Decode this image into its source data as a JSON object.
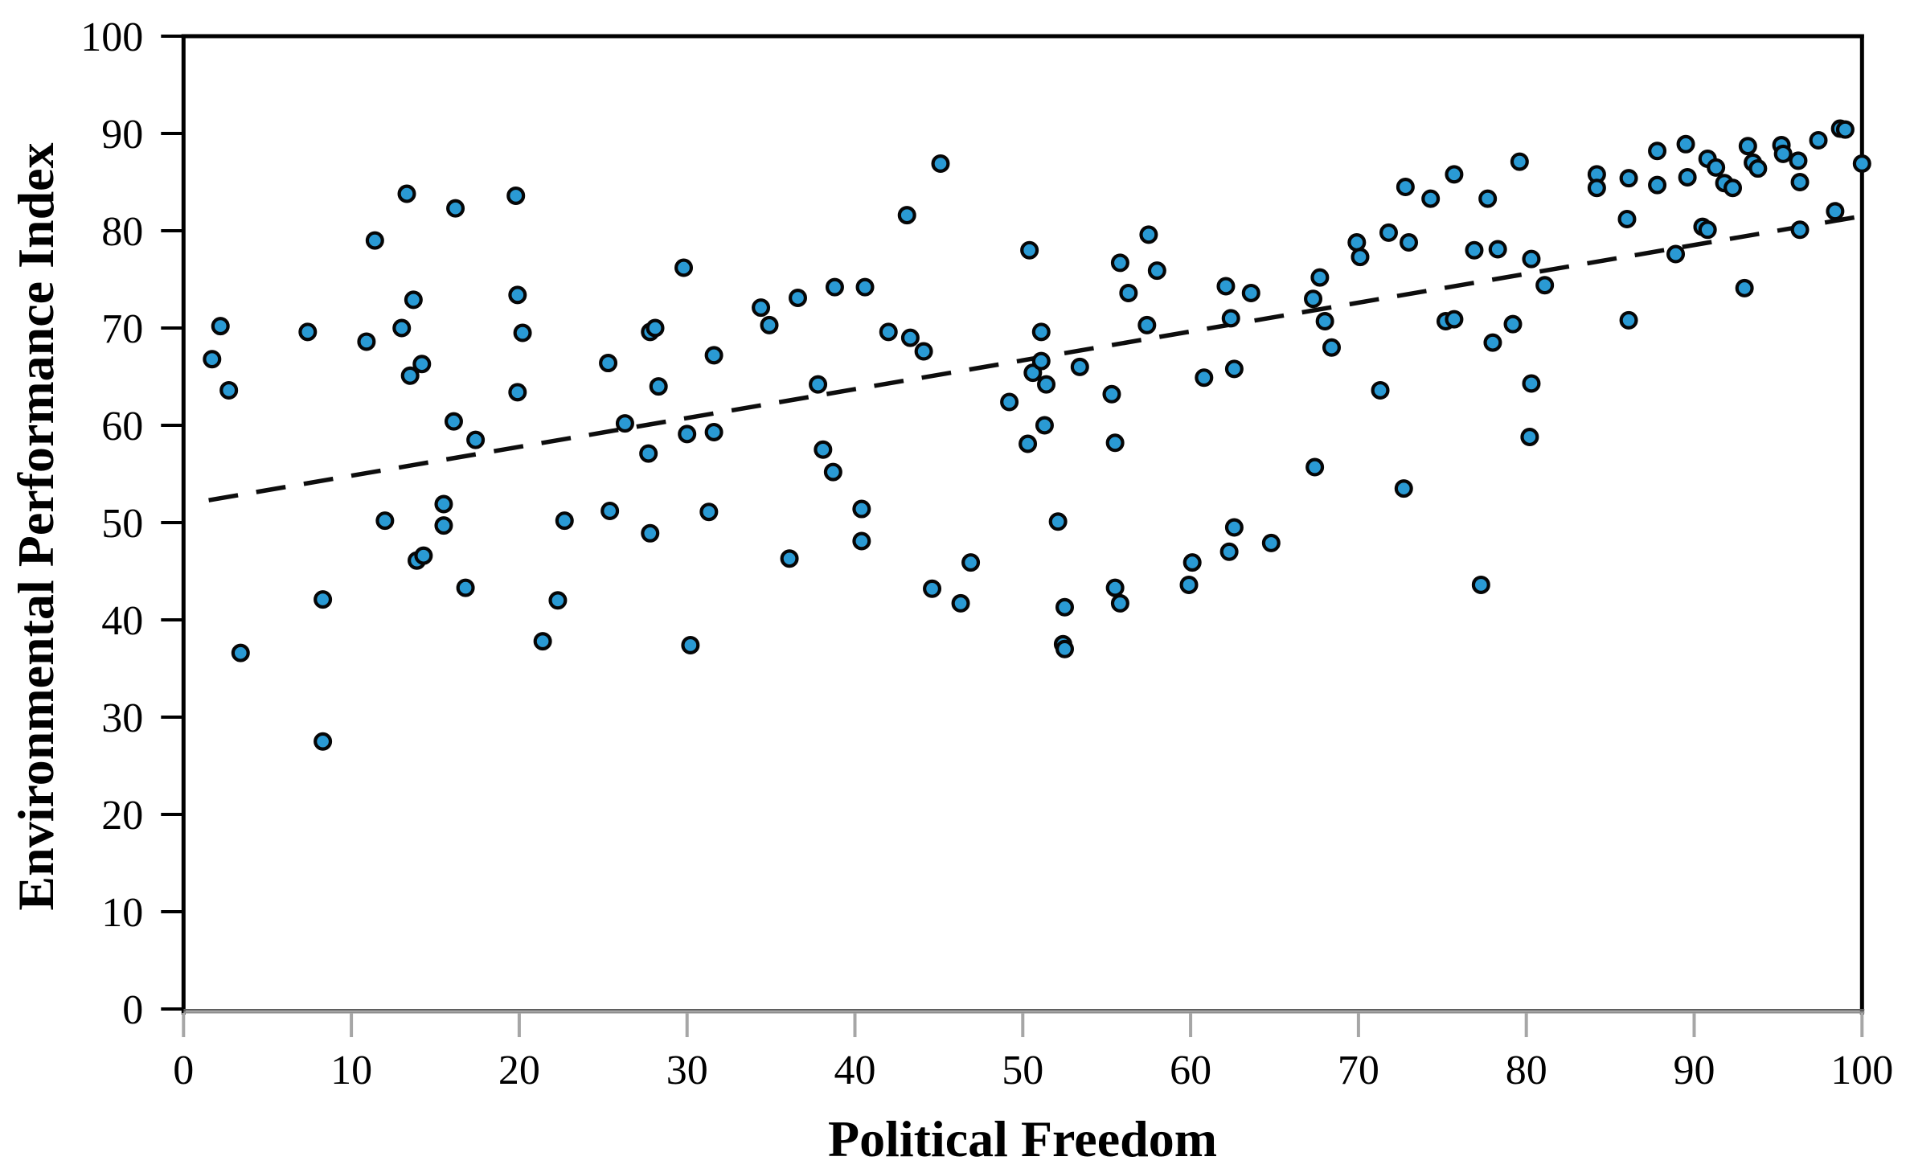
{
  "chart_data": {
    "type": "scatter",
    "title": "",
    "xlabel": "Political Freedom",
    "ylabel": "Environmental Performance Index",
    "xlim": [
      0,
      100
    ],
    "ylim": [
      0,
      100
    ],
    "xticks": [
      0,
      10,
      20,
      30,
      40,
      50,
      60,
      70,
      80,
      90,
      100
    ],
    "yticks": [
      0,
      10,
      20,
      30,
      40,
      50,
      60,
      70,
      80,
      90,
      100
    ],
    "grid": false,
    "legend": null,
    "marker": {
      "fill": "#2A9AD4",
      "stroke": "#060606"
    },
    "trendline": {
      "style": "dashed",
      "color": "#0d0d0d",
      "x_start": 1.5,
      "y_start": 52.3,
      "x_end": 100,
      "y_end": 81.5
    },
    "points": [
      [
        2.2,
        70.2
      ],
      [
        1.7,
        66.8
      ],
      [
        2.7,
        63.6
      ],
      [
        3.4,
        36.6
      ],
      [
        7.4,
        69.6
      ],
      [
        8.3,
        42.1
      ],
      [
        8.3,
        27.5
      ],
      [
        10.9,
        68.6
      ],
      [
        11.4,
        79.0
      ],
      [
        12.0,
        50.2
      ],
      [
        13.0,
        70.0
      ],
      [
        13.3,
        83.8
      ],
      [
        13.5,
        65.1
      ],
      [
        13.7,
        72.9
      ],
      [
        13.9,
        46.1
      ],
      [
        14.3,
        46.6
      ],
      [
        14.2,
        66.3
      ],
      [
        15.5,
        51.9
      ],
      [
        15.5,
        49.7
      ],
      [
        16.1,
        60.4
      ],
      [
        16.2,
        82.3
      ],
      [
        16.8,
        43.3
      ],
      [
        17.4,
        58.5
      ],
      [
        19.8,
        83.6
      ],
      [
        19.9,
        73.4
      ],
      [
        19.9,
        63.4
      ],
      [
        20.2,
        69.5
      ],
      [
        21.4,
        37.8
      ],
      [
        22.3,
        42.0
      ],
      [
        22.7,
        50.2
      ],
      [
        25.3,
        66.4
      ],
      [
        25.4,
        51.2
      ],
      [
        26.3,
        60.2
      ],
      [
        27.7,
        57.1
      ],
      [
        27.8,
        69.6
      ],
      [
        27.8,
        48.9
      ],
      [
        28.1,
        70.0
      ],
      [
        28.3,
        64.0
      ],
      [
        29.8,
        76.2
      ],
      [
        30.0,
        59.1
      ],
      [
        30.2,
        37.4
      ],
      [
        31.3,
        51.1
      ],
      [
        31.6,
        67.2
      ],
      [
        31.6,
        59.3
      ],
      [
        34.4,
        72.1
      ],
      [
        34.9,
        70.3
      ],
      [
        36.1,
        46.3
      ],
      [
        36.6,
        73.1
      ],
      [
        37.8,
        64.2
      ],
      [
        38.1,
        57.5
      ],
      [
        38.7,
        55.2
      ],
      [
        38.8,
        74.2
      ],
      [
        40.6,
        74.2
      ],
      [
        40.4,
        51.4
      ],
      [
        40.4,
        48.1
      ],
      [
        42.0,
        69.6
      ],
      [
        43.1,
        81.6
      ],
      [
        43.3,
        69.0
      ],
      [
        44.1,
        67.6
      ],
      [
        44.6,
        43.2
      ],
      [
        45.1,
        86.9
      ],
      [
        46.3,
        41.7
      ],
      [
        46.9,
        45.9
      ],
      [
        49.2,
        62.4
      ],
      [
        50.3,
        58.1
      ],
      [
        50.4,
        78.0
      ],
      [
        50.6,
        65.4
      ],
      [
        51.1,
        69.6
      ],
      [
        51.1,
        66.6
      ],
      [
        51.3,
        60.0
      ],
      [
        51.4,
        64.2
      ],
      [
        52.1,
        50.1
      ],
      [
        52.4,
        37.5
      ],
      [
        52.5,
        37.0
      ],
      [
        52.5,
        41.3
      ],
      [
        53.4,
        66.0
      ],
      [
        55.3,
        63.2
      ],
      [
        55.5,
        58.2
      ],
      [
        55.5,
        43.3
      ],
      [
        55.8,
        76.7
      ],
      [
        55.8,
        41.7
      ],
      [
        56.3,
        73.6
      ],
      [
        57.4,
        70.3
      ],
      [
        57.5,
        79.6
      ],
      [
        58.0,
        75.9
      ],
      [
        59.9,
        43.6
      ],
      [
        60.1,
        45.9
      ],
      [
        60.8,
        64.9
      ],
      [
        62.1,
        74.3
      ],
      [
        62.3,
        47.0
      ],
      [
        62.4,
        71.0
      ],
      [
        62.6,
        65.8
      ],
      [
        62.6,
        49.5
      ],
      [
        63.6,
        73.6
      ],
      [
        64.8,
        47.9
      ],
      [
        67.3,
        73.0
      ],
      [
        67.4,
        55.7
      ],
      [
        67.7,
        75.2
      ],
      [
        68.0,
        70.7
      ],
      [
        68.4,
        68.0
      ],
      [
        69.9,
        78.8
      ],
      [
        70.1,
        77.3
      ],
      [
        71.3,
        63.6
      ],
      [
        71.8,
        79.8
      ],
      [
        72.7,
        53.5
      ],
      [
        72.8,
        84.5
      ],
      [
        73.0,
        78.8
      ],
      [
        74.3,
        83.3
      ],
      [
        75.2,
        70.7
      ],
      [
        75.7,
        70.9
      ],
      [
        75.7,
        85.8
      ],
      [
        76.9,
        78.0
      ],
      [
        77.3,
        43.6
      ],
      [
        77.7,
        83.3
      ],
      [
        78.0,
        68.5
      ],
      [
        78.3,
        78.1
      ],
      [
        79.2,
        70.4
      ],
      [
        79.6,
        87.1
      ],
      [
        80.2,
        58.8
      ],
      [
        80.3,
        77.1
      ],
      [
        80.3,
        64.3
      ],
      [
        81.1,
        74.4
      ],
      [
        84.2,
        85.8
      ],
      [
        84.2,
        84.4
      ],
      [
        86.0,
        81.2
      ],
      [
        86.1,
        85.4
      ],
      [
        86.1,
        70.8
      ],
      [
        87.8,
        88.2
      ],
      [
        87.8,
        84.7
      ],
      [
        88.9,
        77.6
      ],
      [
        89.5,
        88.9
      ],
      [
        89.6,
        85.5
      ],
      [
        90.5,
        80.4
      ],
      [
        90.8,
        87.4
      ],
      [
        90.8,
        80.1
      ],
      [
        91.3,
        86.5
      ],
      [
        91.8,
        84.9
      ],
      [
        92.3,
        84.4
      ],
      [
        93.0,
        74.1
      ],
      [
        93.2,
        88.7
      ],
      [
        93.5,
        87.0
      ],
      [
        93.8,
        86.4
      ],
      [
        95.2,
        88.8
      ],
      [
        95.3,
        87.9
      ],
      [
        96.2,
        87.2
      ],
      [
        96.3,
        85.0
      ],
      [
        96.3,
        80.1
      ],
      [
        97.4,
        89.3
      ],
      [
        98.4,
        82.0
      ],
      [
        98.7,
        90.5
      ],
      [
        99.0,
        90.4
      ],
      [
        100,
        86.9
      ]
    ]
  },
  "colors": {
    "frame": "#000000",
    "bottom_spine": "#8f8f8f",
    "x_tick": "#a6a6a6",
    "y_tick": "#000000",
    "background": "#ffffff"
  }
}
